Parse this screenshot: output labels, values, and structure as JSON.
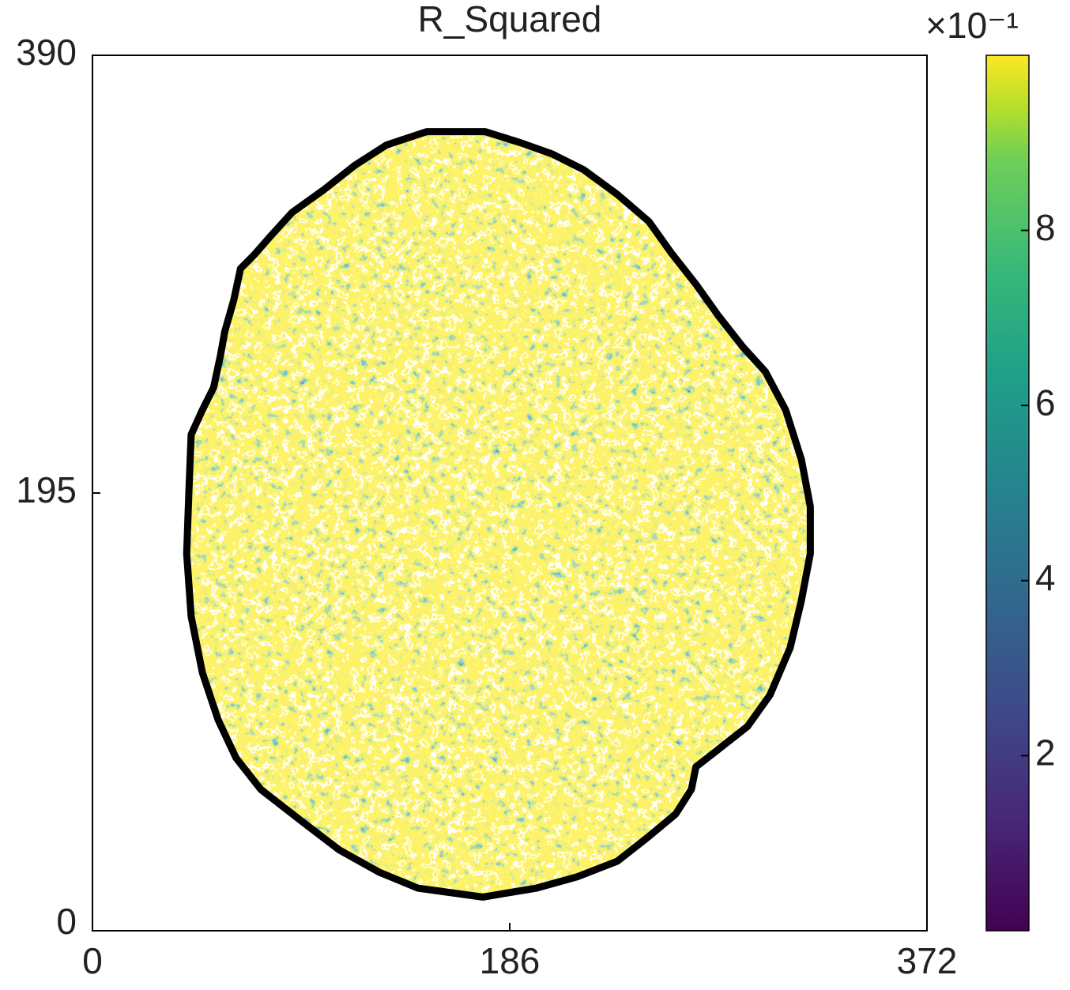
{
  "chart_data": {
    "type": "heatmap",
    "title": "R_Squared",
    "xlim": [
      0,
      372
    ],
    "xticks": [
      0,
      186,
      372
    ],
    "ylim": [
      0,
      390
    ],
    "yticks": [
      0,
      195,
      390
    ],
    "colormap": "viridis",
    "clim": [
      0,
      1
    ],
    "colorbar_ticks": [
      {
        "value": 0.2,
        "label": "2"
      },
      {
        "value": 0.4,
        "label": "4"
      },
      {
        "value": 0.6,
        "label": "6"
      },
      {
        "value": 0.8,
        "label": "8"
      }
    ],
    "colorbar_offset": "×10⁻¹",
    "outline": {
      "x": [
        149,
        175,
        191,
        205,
        219,
        234,
        248,
        258,
        269,
        279,
        290,
        300,
        309,
        316,
        320,
        320,
        316,
        311,
        302,
        292,
        278,
        269,
        267,
        260,
        248,
        234,
        216,
        198,
        174,
        145,
        128,
        110,
        93,
        75,
        64,
        56,
        49,
        44,
        42,
        43,
        44,
        49,
        54,
        57,
        59,
        63,
        66,
        72,
        79,
        89,
        103,
        117,
        131
      ],
      "y": [
        356,
        356,
        351,
        346,
        339,
        328,
        316,
        302,
        288,
        274,
        260,
        249,
        232,
        210,
        189,
        168,
        147,
        126,
        105,
        91,
        80,
        73,
        63,
        52,
        42,
        31,
        24,
        19,
        15,
        19,
        26,
        36,
        49,
        63,
        77,
        94,
        115,
        140,
        168,
        196,
        221,
        232,
        242,
        256,
        267,
        281,
        295,
        301,
        309,
        320,
        330,
        341,
        350
      ],
      "color": "#000000"
    }
  }
}
